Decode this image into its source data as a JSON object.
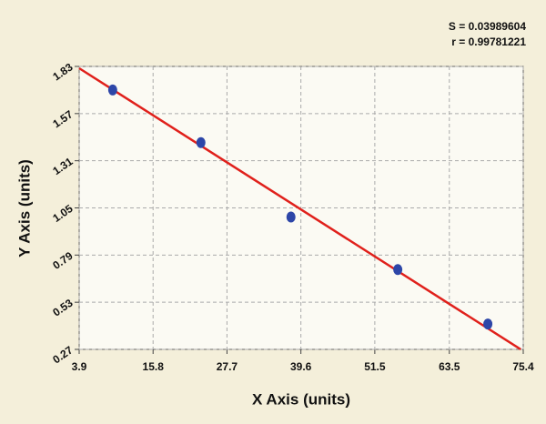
{
  "chart_data": {
    "type": "scatter",
    "annotations": [
      "S = 0.03989604",
      "r = 0.99781221"
    ],
    "x_label": "X Axis (units)",
    "y_label": "Y Axis (units)",
    "series": [
      {
        "color": "#2d46a8",
        "x": [
          9.3,
          23.5,
          38.0,
          55.2,
          69.7
        ],
        "values": [
          1.7,
          1.41,
          1.0,
          0.71,
          0.41
        ]
      }
    ],
    "fit_line": {
      "type": "line",
      "color": "#e0201b",
      "x": [
        3.9,
        75.0
      ],
      "values": [
        1.82,
        0.27
      ]
    },
    "xlim": [
      3.9,
      75.4
    ],
    "xticks": [
      3.9,
      15.8,
      27.7,
      39.6,
      51.5,
      63.5,
      75.4
    ],
    "ylim": [
      0.27,
      1.83
    ],
    "yticks": [
      0.27,
      0.53,
      0.79,
      1.05,
      1.31,
      1.57,
      1.83
    ],
    "grid": true
  }
}
